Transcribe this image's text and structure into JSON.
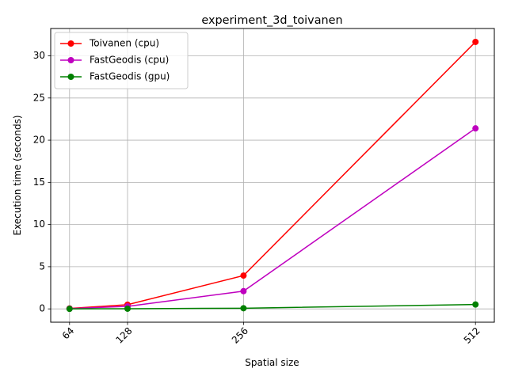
{
  "chart_data": {
    "type": "line",
    "title": "experiment_3d_toivanen",
    "xlabel": "Spatial size",
    "ylabel": "Execution time (seconds)",
    "x": [
      64,
      128,
      256,
      512
    ],
    "x_tick_labels": [
      "64",
      "128",
      "256",
      "512"
    ],
    "xlim": [
      43.2,
      532.8
    ],
    "ylim": [
      -1.58,
      33.24
    ],
    "y_ticks": [
      0,
      5,
      10,
      15,
      20,
      25,
      30
    ],
    "y_tick_labels": [
      "0",
      "5",
      "10",
      "15",
      "20",
      "25",
      "30"
    ],
    "grid": true,
    "legend_position": "top-left",
    "series": [
      {
        "name": "Toivanen (cpu)",
        "color": "#ff0000",
        "values": [
          0.05,
          0.5,
          3.95,
          31.65
        ]
      },
      {
        "name": "FastGeodis (cpu)",
        "color": "#bf00bf",
        "values": [
          0.03,
          0.3,
          2.1,
          21.4
        ]
      },
      {
        "name": "FastGeodis (gpu)",
        "color": "#008000",
        "values": [
          0.0,
          0.02,
          0.08,
          0.52
        ]
      }
    ]
  }
}
